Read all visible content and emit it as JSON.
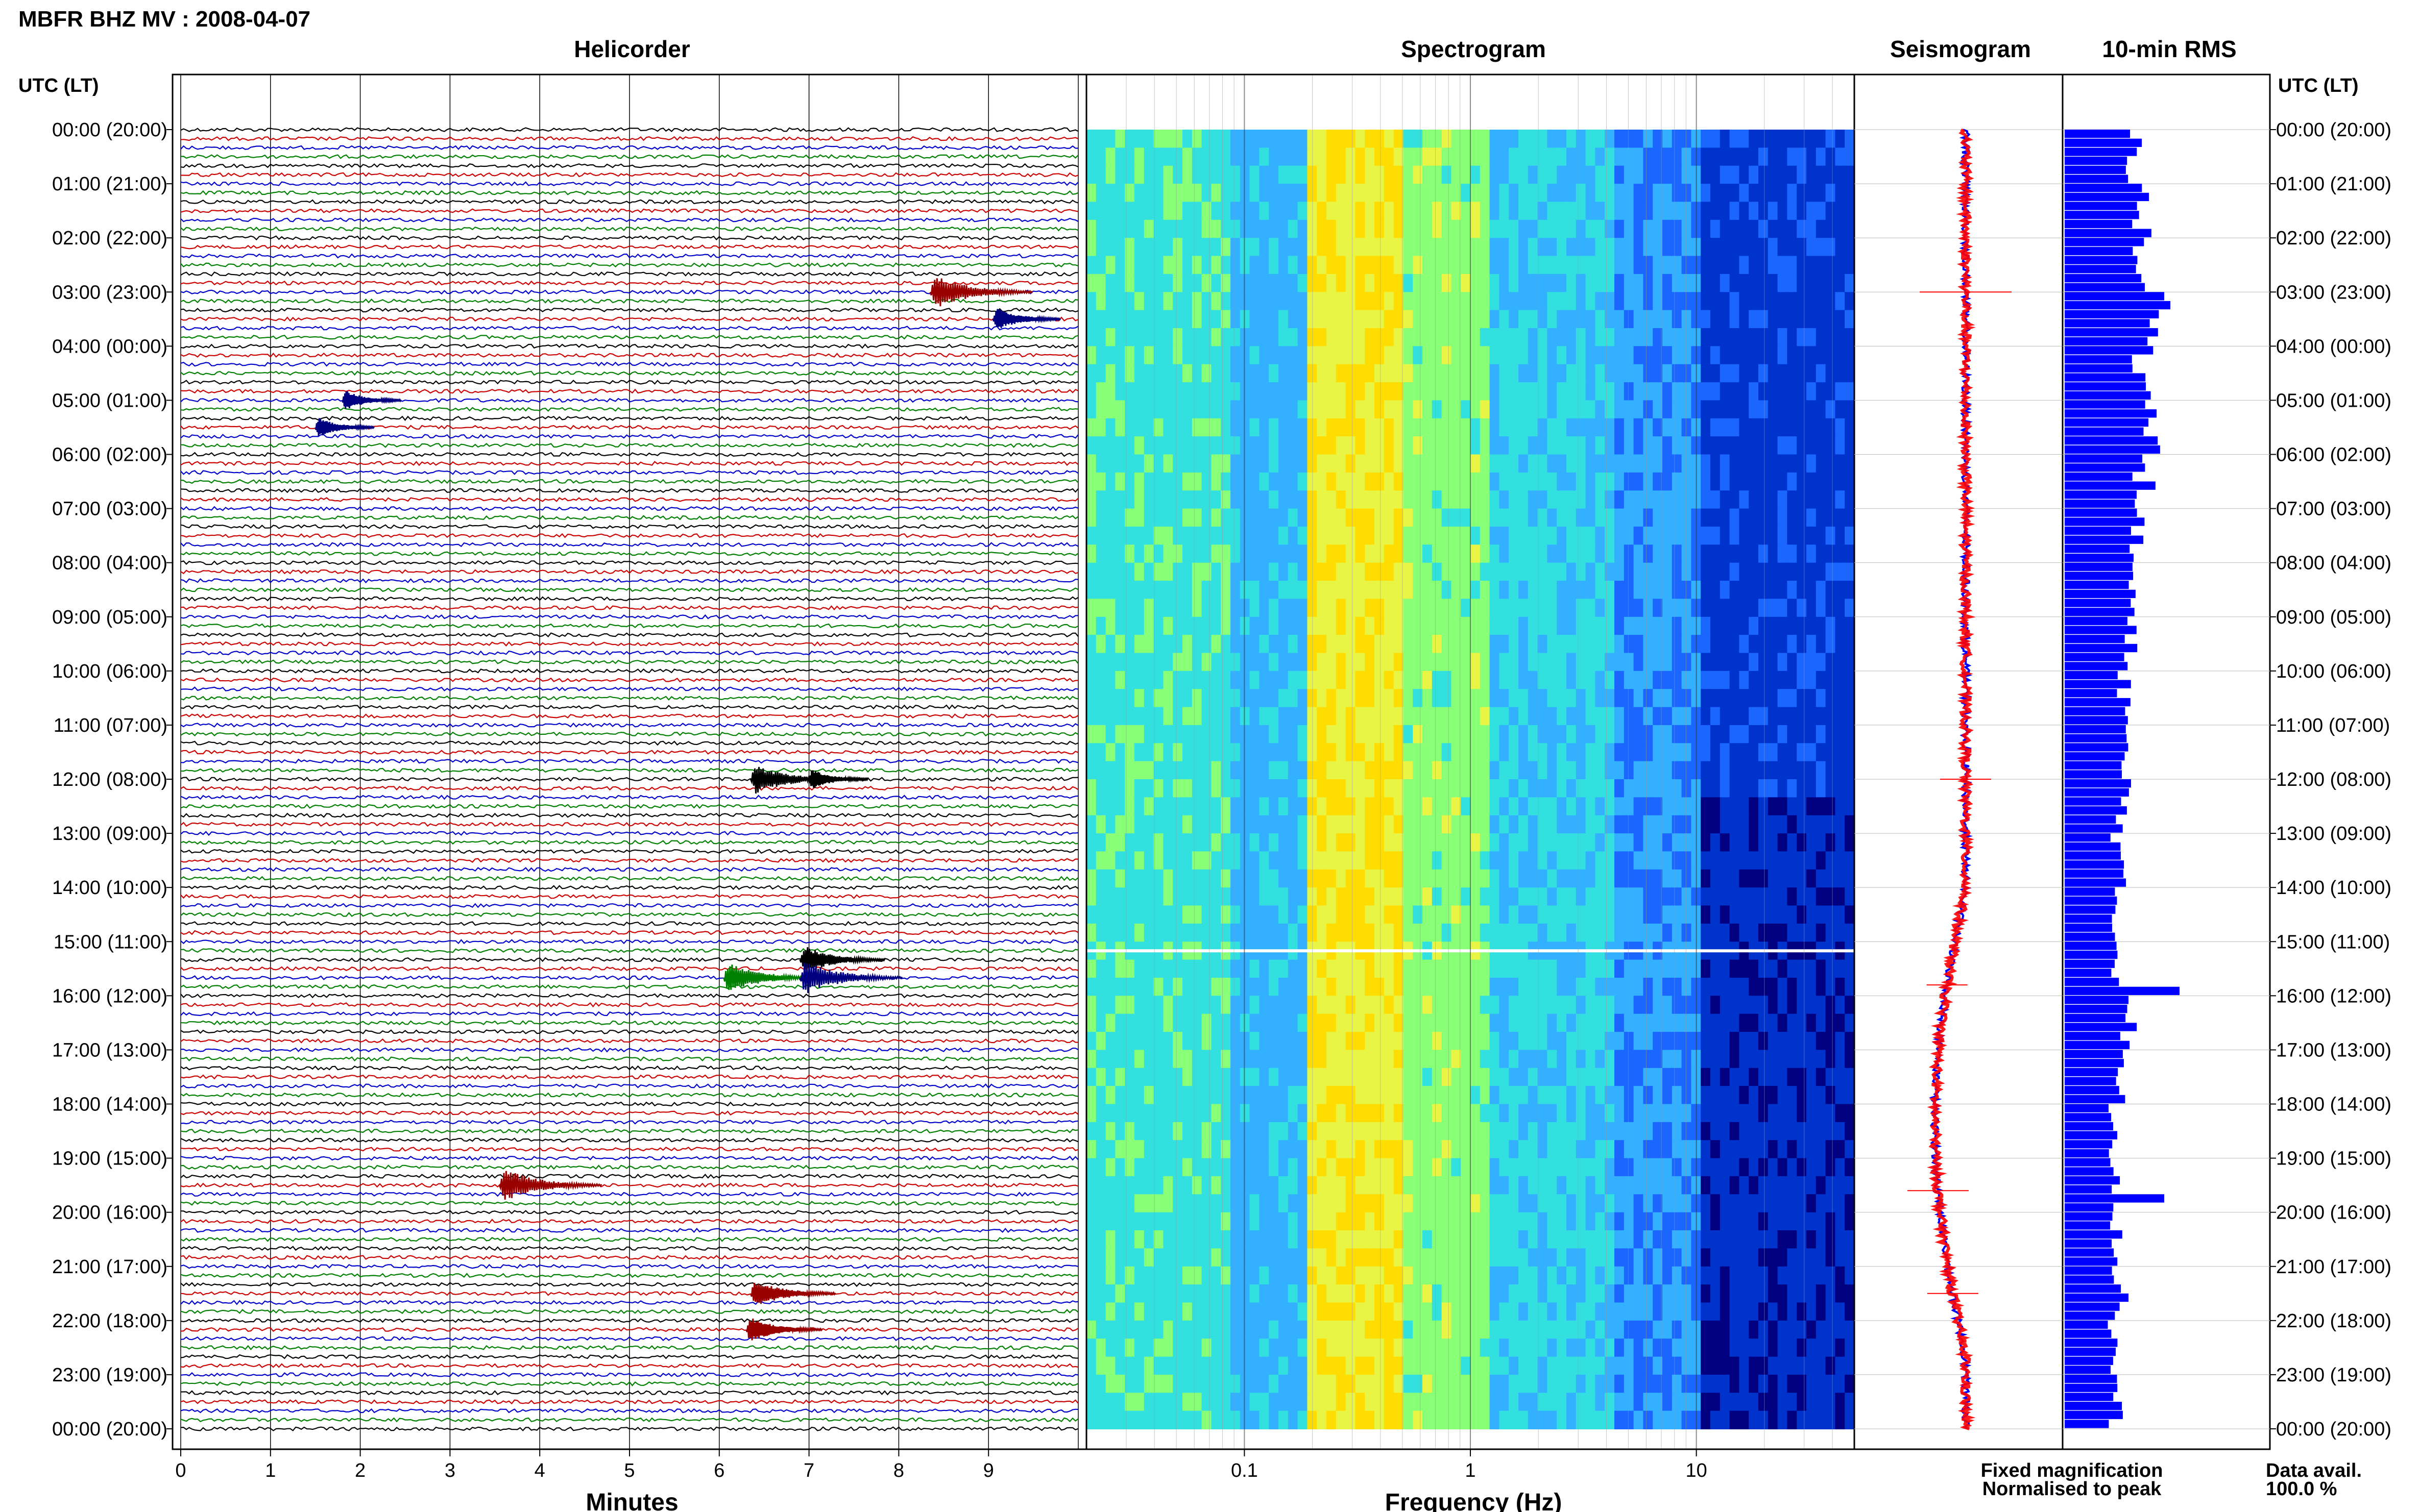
{
  "title": "MBFR BHZ MV : 2008-04-07",
  "chart_data": {
    "type": "line",
    "title": "MBFR BHZ MV : 2008-04-07",
    "panels": {
      "helicorder": {
        "title": "Helicorder",
        "xlabel": "Minutes",
        "xlim": [
          0,
          10
        ],
        "x_ticks": [
          0,
          1,
          2,
          3,
          4,
          5,
          6,
          7,
          8,
          9
        ],
        "rows_per_hour": 6,
        "trace_colors": [
          "#000000",
          "#cc0000",
          "#0000cc",
          "#008000"
        ],
        "events": [
          {
            "hour": 3.0,
            "minute": 8.35,
            "strength": 1.0,
            "color": "#990000"
          },
          {
            "hour": 3.5,
            "minute": 9.05,
            "strength": 0.6,
            "color": "#000080"
          },
          {
            "hour": 5.0,
            "minute": 1.8,
            "strength": 0.5,
            "color": "#000080"
          },
          {
            "hour": 5.5,
            "minute": 1.5,
            "strength": 0.5,
            "color": "#000080"
          },
          {
            "hour": 12.0,
            "minute": 6.35,
            "strength": 0.9,
            "color": "#000000"
          },
          {
            "hour": 12.0,
            "minute": 7.0,
            "strength": 0.5,
            "color": "#000000"
          },
          {
            "hour": 15.33,
            "minute": 6.9,
            "strength": 0.8,
            "color": "#000000"
          },
          {
            "hour": 15.67,
            "minute": 6.05,
            "strength": 0.9,
            "color": "#008000"
          },
          {
            "hour": 15.67,
            "minute": 6.9,
            "strength": 1.0,
            "color": "#000080"
          },
          {
            "hour": 19.5,
            "minute": 3.55,
            "strength": 1.0,
            "color": "#990000"
          },
          {
            "hour": 21.5,
            "minute": 6.35,
            "strength": 0.8,
            "color": "#990000"
          },
          {
            "hour": 22.17,
            "minute": 6.3,
            "strength": 0.7,
            "color": "#990000"
          }
        ]
      },
      "spectrogram": {
        "title": "Spectrogram",
        "xlabel": "Frequency (Hz)",
        "xscale": "log",
        "xlim": [
          0.02,
          50
        ],
        "x_ticks": [
          0.1,
          1,
          10
        ],
        "colormap": [
          "#000080",
          "#0033cc",
          "#1a66ff",
          "#33b0ff",
          "#33e0e0",
          "#88ff77",
          "#e8f545",
          "#ffdd00"
        ]
      },
      "seismogram": {
        "title": "Seismogram",
        "legend": [
          {
            "label": "Fixed magnification",
            "color": "#0000ff"
          },
          {
            "label": "Normalised to peak",
            "color": "#ff0000"
          }
        ]
      },
      "rms": {
        "title": "10-min RMS",
        "bar_color": "#0000ff",
        "values_hourly": [
          0.55,
          0.6,
          0.58,
          0.75,
          0.62,
          0.68,
          0.62,
          0.55,
          0.52,
          0.5,
          0.48,
          0.45,
          0.46,
          0.42,
          0.4,
          0.42,
          0.5,
          0.42,
          0.4,
          0.42,
          0.4,
          0.42,
          0.38,
          0.4
        ],
        "spikes": [
          {
            "hour": 3.0,
            "value": 0.78
          },
          {
            "hour": 12.0,
            "value": 0.52
          },
          {
            "hour": 15.8,
            "value": 0.9
          },
          {
            "hour": 19.6,
            "value": 0.78
          },
          {
            "hour": 21.5,
            "value": 0.5
          }
        ]
      }
    },
    "y_axis": {
      "label": "UTC (LT)",
      "ticks": [
        "00:00 (20:00)",
        "01:00 (21:00)",
        "02:00 (22:00)",
        "03:00 (23:00)",
        "04:00 (00:00)",
        "05:00 (01:00)",
        "06:00 (02:00)",
        "07:00 (03:00)",
        "08:00 (04:00)",
        "09:00 (05:00)",
        "10:00 (06:00)",
        "11:00 (07:00)",
        "12:00 (08:00)",
        "13:00 (09:00)",
        "14:00 (10:00)",
        "15:00 (11:00)",
        "16:00 (12:00)",
        "17:00 (13:00)",
        "18:00 (14:00)",
        "19:00 (15:00)",
        "20:00 (16:00)",
        "21:00 (17:00)",
        "22:00 (18:00)",
        "23:00 (19:00)",
        "00:00 (20:00)"
      ],
      "range_hours": [
        0,
        24
      ]
    },
    "data_availability": {
      "label": "Data avail.",
      "value": "100.0 %"
    }
  }
}
